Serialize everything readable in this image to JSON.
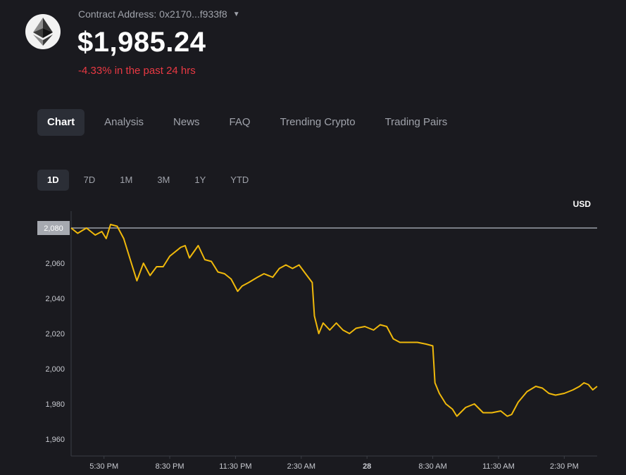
{
  "token": {
    "logo_icon": "ethereum-icon",
    "contract_label": "Contract Address: 0x2170...f933f8",
    "price": "$1,985.24",
    "change": "-4.33% in the past 24 hrs",
    "change_color": "#ea3943"
  },
  "tabs": [
    {
      "label": "Chart",
      "active": true
    },
    {
      "label": "Analysis"
    },
    {
      "label": "News"
    },
    {
      "label": "FAQ"
    },
    {
      "label": "Trending Crypto"
    },
    {
      "label": "Trading Pairs"
    }
  ],
  "ranges": [
    {
      "label": "1D",
      "active": true
    },
    {
      "label": "7D"
    },
    {
      "label": "1M"
    },
    {
      "label": "3M"
    },
    {
      "label": "1Y"
    },
    {
      "label": "YTD"
    }
  ],
  "chart_data": {
    "type": "line",
    "currency_label": "USD",
    "line_color": "#f0b90b",
    "reference_value": 2080,
    "reference_label": "2,080",
    "ylim": [
      1954,
      2084
    ],
    "y_ticks": [
      {
        "value": 2060,
        "label": "2,060"
      },
      {
        "value": 2040,
        "label": "2,040"
      },
      {
        "value": 2020,
        "label": "2,020"
      },
      {
        "value": 2000,
        "label": "2,000"
      },
      {
        "value": 1980,
        "label": "1,980"
      },
      {
        "value": 1960,
        "label": "1,960"
      }
    ],
    "xlim": [
      0,
      24
    ],
    "x_ticks": [
      {
        "t": 1.5,
        "label": "5:30 PM"
      },
      {
        "t": 4.5,
        "label": "8:30 PM"
      },
      {
        "t": 7.5,
        "label": "11:30 PM"
      },
      {
        "t": 10.5,
        "label": "2:30 AM"
      },
      {
        "t": 13.5,
        "label": "28",
        "bold": true
      },
      {
        "t": 16.5,
        "label": "8:30 AM"
      },
      {
        "t": 19.5,
        "label": "11:30 AM"
      },
      {
        "t": 22.5,
        "label": "2:30 PM"
      }
    ],
    "series": [
      {
        "values": [
          [
            0.0,
            2080
          ],
          [
            0.3,
            2077
          ],
          [
            0.7,
            2080
          ],
          [
            1.1,
            2076
          ],
          [
            1.4,
            2078
          ],
          [
            1.6,
            2074
          ],
          [
            1.8,
            2082
          ],
          [
            2.1,
            2081
          ],
          [
            2.4,
            2074
          ],
          [
            2.7,
            2062
          ],
          [
            3.0,
            2050
          ],
          [
            3.3,
            2060
          ],
          [
            3.6,
            2053
          ],
          [
            3.9,
            2058
          ],
          [
            4.2,
            2058
          ],
          [
            4.5,
            2064
          ],
          [
            5.0,
            2069
          ],
          [
            5.2,
            2070
          ],
          [
            5.4,
            2063
          ],
          [
            5.8,
            2070
          ],
          [
            6.1,
            2062
          ],
          [
            6.4,
            2061
          ],
          [
            6.7,
            2055
          ],
          [
            7.0,
            2054
          ],
          [
            7.3,
            2051
          ],
          [
            7.6,
            2044
          ],
          [
            7.8,
            2047
          ],
          [
            8.1,
            2049
          ],
          [
            8.5,
            2052
          ],
          [
            8.8,
            2054
          ],
          [
            9.2,
            2052
          ],
          [
            9.5,
            2057
          ],
          [
            9.8,
            2059
          ],
          [
            10.1,
            2057
          ],
          [
            10.4,
            2059
          ],
          [
            10.7,
            2054
          ],
          [
            11.0,
            2049
          ],
          [
            11.1,
            2030
          ],
          [
            11.3,
            2020
          ],
          [
            11.5,
            2026
          ],
          [
            11.8,
            2022
          ],
          [
            12.1,
            2026
          ],
          [
            12.4,
            2022
          ],
          [
            12.7,
            2020
          ],
          [
            13.0,
            2023
          ],
          [
            13.4,
            2024
          ],
          [
            13.8,
            2022
          ],
          [
            14.1,
            2025
          ],
          [
            14.4,
            2024
          ],
          [
            14.7,
            2017
          ],
          [
            15.0,
            2015
          ],
          [
            15.4,
            2015
          ],
          [
            15.8,
            2015
          ],
          [
            16.2,
            2014
          ],
          [
            16.5,
            2013
          ],
          [
            16.6,
            1992
          ],
          [
            16.8,
            1986
          ],
          [
            17.1,
            1980
          ],
          [
            17.4,
            1977
          ],
          [
            17.6,
            1973
          ],
          [
            18.0,
            1978
          ],
          [
            18.4,
            1980
          ],
          [
            18.8,
            1975
          ],
          [
            19.2,
            1975
          ],
          [
            19.6,
            1976
          ],
          [
            19.9,
            1973
          ],
          [
            20.1,
            1974
          ],
          [
            20.4,
            1981
          ],
          [
            20.8,
            1987
          ],
          [
            21.2,
            1990
          ],
          [
            21.5,
            1989
          ],
          [
            21.8,
            1986
          ],
          [
            22.1,
            1985
          ],
          [
            22.5,
            1986
          ],
          [
            22.9,
            1988
          ],
          [
            23.2,
            1990
          ],
          [
            23.4,
            1992
          ],
          [
            23.6,
            1991
          ],
          [
            23.8,
            1988
          ],
          [
            24.0,
            1990
          ]
        ]
      }
    ]
  }
}
